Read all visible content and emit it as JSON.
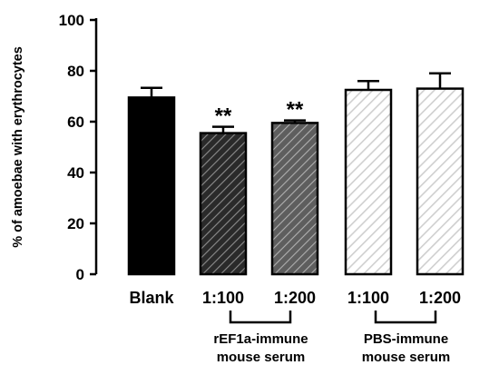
{
  "chart_data": {
    "type": "bar",
    "ylabel": "% of amoebae with erythrocytes",
    "ylim": [
      0,
      100
    ],
    "yticks": [
      0,
      20,
      40,
      60,
      80,
      100
    ],
    "grid": false,
    "categories": [
      "Blank",
      "1:100",
      "1:200",
      "1:100",
      "1:200"
    ],
    "values": [
      69.5,
      55.5,
      59.5,
      72.5,
      73
    ],
    "errors": [
      3.8,
      2.5,
      1.0,
      3.5,
      6.0
    ],
    "significance": [
      "",
      "**",
      "**",
      "",
      ""
    ],
    "fills": [
      "solid",
      "hatch-dark",
      "hatch-mid",
      "hatch-light",
      "hatch-light"
    ],
    "colors": {
      "solid": "#000000",
      "hatch-dark": "#4a4a4a",
      "hatch-mid": "#7a7a7a",
      "hatch-light": "#d9d9d9",
      "outline": "#000000"
    },
    "groups": [
      {
        "label_line1": "rEF1a-immune",
        "label_line2": "mouse serum",
        "from_index": 1,
        "to_index": 2
      },
      {
        "label_line1": "PBS-immune",
        "label_line2": "mouse serum",
        "from_index": 3,
        "to_index": 4
      }
    ]
  }
}
